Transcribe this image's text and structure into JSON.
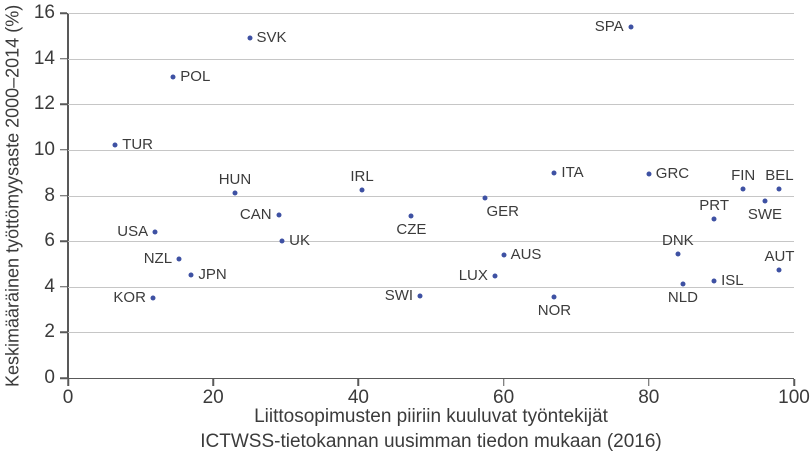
{
  "chart_data": {
    "type": "scatter",
    "title": "",
    "ylabel": "Keskimääräinen työttömyysaste 2000–2014 (%)",
    "xlabel_line1": "Liittosopimusten piiriin kuuluvat työntekijät",
    "xlabel_line2": "ICTWSS-tietokannan uusimman tiedon mukaan (2016)",
    "xlim": [
      0,
      100
    ],
    "ylim": [
      0,
      16
    ],
    "x_ticks": [
      0,
      20,
      40,
      60,
      80,
      100
    ],
    "y_ticks": [
      0,
      2,
      4,
      6,
      8,
      10,
      12,
      14,
      16
    ],
    "grid": "horizontal",
    "legend": "none",
    "point_color": "#3E51A3",
    "text_color": "#3b3b3b",
    "gridline_color": "#c6c6c6",
    "axis_color": "#595959",
    "points": [
      {
        "code": "TUR",
        "x": 6.5,
        "y": 10.2,
        "label_pos": "right"
      },
      {
        "code": "KOR",
        "x": 11.7,
        "y": 3.5,
        "label_pos": "left"
      },
      {
        "code": "USA",
        "x": 12,
        "y": 6.4,
        "label_pos": "left"
      },
      {
        "code": "POL",
        "x": 14.5,
        "y": 13.2,
        "label_pos": "right"
      },
      {
        "code": "NZL",
        "x": 15.3,
        "y": 5.2,
        "label_pos": "left"
      },
      {
        "code": "JPN",
        "x": 17,
        "y": 4.5,
        "label_pos": "right"
      },
      {
        "code": "HUN",
        "x": 23,
        "y": 8.1,
        "label_pos": "above"
      },
      {
        "code": "SVK",
        "x": 25,
        "y": 14.9,
        "label_pos": "right"
      },
      {
        "code": "CAN",
        "x": 29,
        "y": 7.15,
        "label_pos": "left"
      },
      {
        "code": "UK",
        "x": 29.5,
        "y": 6.0,
        "label_pos": "right"
      },
      {
        "code": "IRL",
        "x": 40.5,
        "y": 8.25,
        "label_pos": "above"
      },
      {
        "code": "CZE",
        "x": 47.3,
        "y": 7.1,
        "label_pos": "below"
      },
      {
        "code": "SWI",
        "x": 48.5,
        "y": 3.6,
        "label_pos": "left"
      },
      {
        "code": "GER",
        "x": 57.5,
        "y": 7.9,
        "label_pos": "below-right"
      },
      {
        "code": "LUX",
        "x": 58.8,
        "y": 4.45,
        "label_pos": "left"
      },
      {
        "code": "AUS",
        "x": 60,
        "y": 5.4,
        "label_pos": "right"
      },
      {
        "code": "ITA",
        "x": 67,
        "y": 9.0,
        "label_pos": "right"
      },
      {
        "code": "NOR",
        "x": 67,
        "y": 3.55,
        "label_pos": "below"
      },
      {
        "code": "SPA",
        "x": 77.5,
        "y": 15.4,
        "label_pos": "left"
      },
      {
        "code": "GRC",
        "x": 80,
        "y": 8.95,
        "label_pos": "right"
      },
      {
        "code": "DNK",
        "x": 84,
        "y": 5.45,
        "label_pos": "above"
      },
      {
        "code": "NLD",
        "x": 84.7,
        "y": 4.1,
        "label_pos": "below"
      },
      {
        "code": "PRT",
        "x": 89,
        "y": 6.95,
        "label_pos": "above"
      },
      {
        "code": "ISL",
        "x": 89,
        "y": 4.25,
        "label_pos": "right"
      },
      {
        "code": "FIN",
        "x": 93,
        "y": 8.3,
        "label_pos": "above"
      },
      {
        "code": "SWE",
        "x": 96,
        "y": 7.75,
        "label_pos": "below"
      },
      {
        "code": "BEL",
        "x": 98,
        "y": 8.3,
        "label_pos": "above"
      },
      {
        "code": "AUT",
        "x": 98,
        "y": 4.75,
        "label_pos": "above"
      }
    ]
  }
}
